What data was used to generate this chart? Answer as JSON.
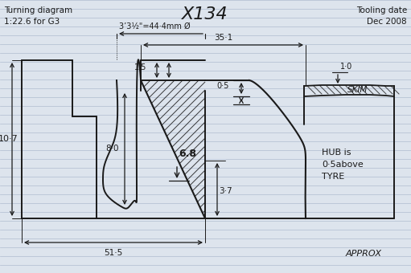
{
  "title": "X134",
  "top_left_text": "Turning diagram\n1:22.6 for G3",
  "top_right_text": "Tooling date\nDec 2008",
  "bottom_right_text": "APPROX",
  "ann_44": "3’3½\"=44·4mm Ø",
  "ann_351": "35·1",
  "ann_515": "51·5",
  "ann_107": "10·7",
  "ann_15": "1·5",
  "ann_05": "0·5",
  "ann_10": "1·0",
  "ann_68": "6.8",
  "ann_80": "8·0",
  "ann_37": "3·7",
  "ann_skim": "SKIM",
  "ann_hub": "HUB is\n0·5above\nTYRE",
  "bg_color": "#dde4ed",
  "line_color": "#1a1a1a",
  "ruled_color": "#b0bdd0",
  "figsize": [
    5.11,
    3.4
  ],
  "dpi": 100
}
